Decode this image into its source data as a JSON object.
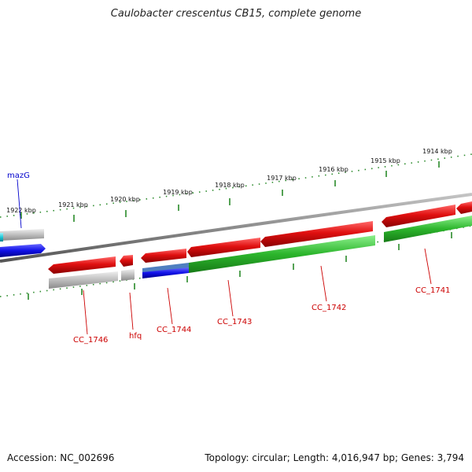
{
  "title": "Caulobacter crescentus CB15, complete genome",
  "footer": {
    "accession": "Accession: NC_002696",
    "summary": "Topology: circular; Length: 4,016,947 bp; Genes: 3,794"
  },
  "colors": {
    "forward_gene": "#e01010",
    "reverse_gene": "#b8b8b8",
    "green_gene": "#2cb52c",
    "blue_gene": "#1010e8",
    "cyan_gene": "#20c8d8",
    "backbone": "#8c8c8c",
    "ruler": "#2a8a2a",
    "label_red": "#cc0000",
    "label_blue": "#0000cc"
  },
  "ruler_labels": [
    "1922 kbp",
    "1921 kbp",
    "1920 kbp",
    "1919 kbp",
    "1918 kbp",
    "1917 kbp",
    "1916 kbp",
    "1915 kbp",
    "1914 kbp"
  ],
  "gene_labels": [
    "mazG",
    "CC_1746",
    "hfq",
    "CC_1744",
    "CC_1743",
    "CC_1742",
    "CC_1741"
  ]
}
